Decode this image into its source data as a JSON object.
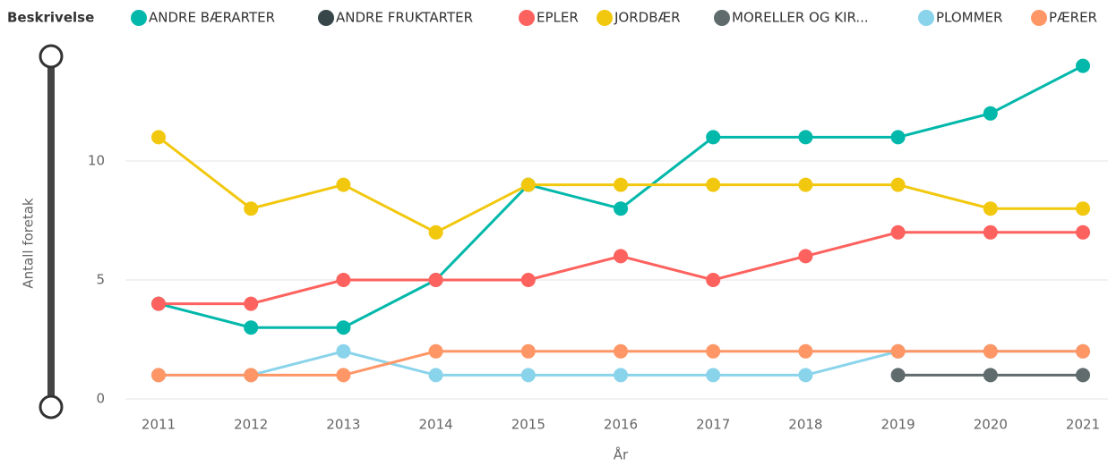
{
  "chart_data": {
    "type": "line",
    "legend_title": "Beskrivelse",
    "y_label": "Antall foretak",
    "x_label": "År",
    "categories": [
      "2011",
      "2012",
      "2013",
      "2014",
      "2015",
      "2016",
      "2017",
      "2018",
      "2019",
      "2020",
      "2021"
    ],
    "series": [
      {
        "name": "ANDRE BÆRARTER",
        "color": "#01B8AA",
        "values": [
          4,
          3,
          3,
          5,
          9,
          8,
          11,
          11,
          11,
          12,
          14
        ]
      },
      {
        "name": "ANDRE FRUKTARTER",
        "color": "#374649",
        "values": [
          null,
          null,
          null,
          null,
          null,
          null,
          null,
          null,
          null,
          null,
          null
        ]
      },
      {
        "name": "EPLER",
        "color": "#FD625E",
        "values": [
          4,
          4,
          5,
          5,
          5,
          6,
          5,
          6,
          7,
          7,
          7
        ]
      },
      {
        "name": "JORDBÆR",
        "color": "#F2C80F",
        "values": [
          11,
          8,
          9,
          7,
          9,
          9,
          9,
          9,
          9,
          8,
          8
        ]
      },
      {
        "name": "MORELLER OG KIR...",
        "color": "#5F6B6D",
        "values": [
          null,
          null,
          null,
          null,
          null,
          null,
          null,
          null,
          1,
          1,
          1
        ]
      },
      {
        "name": "PLOMMER",
        "color": "#8AD4EB",
        "values": [
          1,
          1,
          2,
          1,
          1,
          1,
          1,
          1,
          2,
          2,
          2
        ]
      },
      {
        "name": "PÆRER",
        "color": "#FE9666",
        "values": [
          1,
          1,
          1,
          2,
          2,
          2,
          2,
          2,
          2,
          2,
          2
        ]
      }
    ],
    "ylim": [
      0,
      14
    ],
    "yticks": [
      0,
      5,
      10
    ],
    "grid": true
  }
}
